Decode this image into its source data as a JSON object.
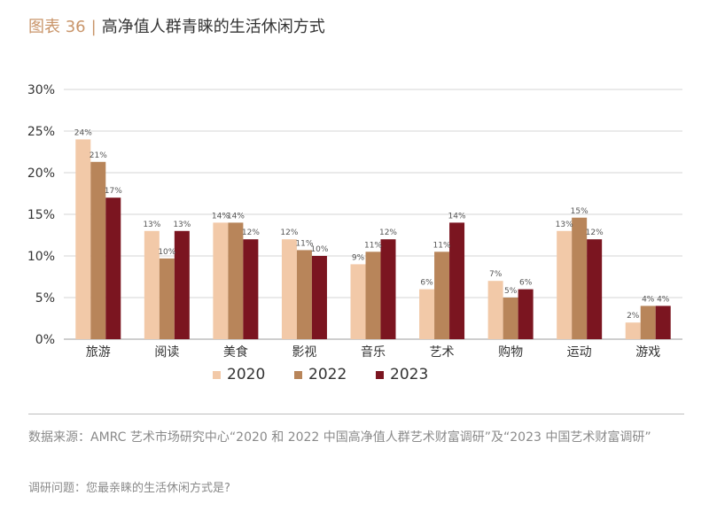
{
  "header": {
    "figure_label": "图表 36",
    "separator": "|",
    "title": "高净值人群青睐的生活休闲方式"
  },
  "chart_data": {
    "type": "bar",
    "categories": [
      "旅游",
      "阅读",
      "美食",
      "影视",
      "音乐",
      "艺术",
      "购物",
      "运动",
      "游戏"
    ],
    "series": [
      {
        "name": "2020",
        "color": "#f2c9a8",
        "values": [
          24,
          13,
          14,
          12,
          9,
          6,
          7,
          13,
          2
        ],
        "labels": [
          "24%",
          "13%",
          "14%",
          "12%",
          "9%",
          "6%",
          "7%",
          "13%",
          "2%"
        ]
      },
      {
        "name": "2022",
        "color": "#b8855a",
        "values": [
          21.3,
          9.7,
          14,
          10.7,
          10.5,
          10.5,
          5,
          14.6,
          4
        ],
        "labels": [
          "21%",
          "10%",
          "14%",
          "11%",
          "11%",
          "11%",
          "5%",
          "15%",
          "4%"
        ]
      },
      {
        "name": "2023",
        "color": "#7b1520",
        "values": [
          17,
          13,
          12,
          10,
          12,
          14,
          6,
          12,
          4
        ],
        "labels": [
          "17%",
          "13%",
          "12%",
          "10%",
          "12%",
          "14%",
          "6%",
          "12%",
          "4%"
        ]
      }
    ],
    "y_ticks": [
      "0%",
      "5%",
      "10%",
      "15%",
      "20%",
      "25%",
      "30%"
    ],
    "ylim": [
      0,
      30
    ],
    "grid": true,
    "legend_position": "bottom-center"
  },
  "footer": {
    "source": "数据来源：AMRC 艺术市场研究中心“2020 和 2022 中国高净值人群艺术财富调研”及“2023 中国艺术财富调研”",
    "question": "调研问题：您最亲睐的生活休闲方式是?"
  }
}
